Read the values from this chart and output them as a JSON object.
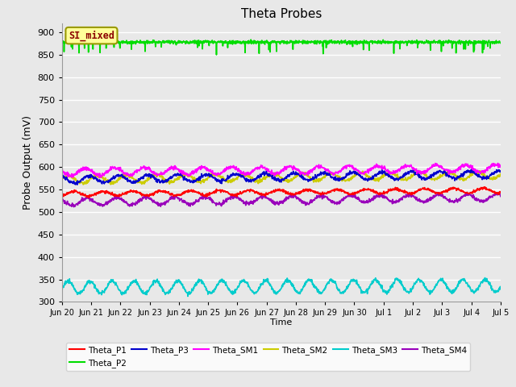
{
  "title": "Theta Probes",
  "ylabel": "Probe Output (mV)",
  "xlabel": "Time",
  "ylim": [
    300,
    920
  ],
  "yticks": [
    300,
    350,
    400,
    450,
    500,
    550,
    600,
    650,
    700,
    750,
    800,
    850,
    900
  ],
  "annotation_text": "SI_mixed",
  "annotation_color": "#8B0000",
  "annotation_bg": "#FFFF99",
  "annotation_border": "#999900",
  "plot_bg": "#E8E8E8",
  "grid_color": "#FFFFFF",
  "series": {
    "Theta_P1": {
      "color": "#FF0000",
      "base": 540,
      "amp": 5,
      "period": 1.0,
      "trend": 8,
      "noise": 1.5
    },
    "Theta_P2": {
      "color": "#00DD00",
      "base": 878,
      "amp": 0,
      "period": 1.0,
      "trend": 0,
      "noise": 4
    },
    "Theta_P3": {
      "color": "#0000CC",
      "base": 572,
      "amp": 8,
      "period": 1.0,
      "trend": 12,
      "noise": 2
    },
    "Theta_SM1": {
      "color": "#FF00FF",
      "base": 589,
      "amp": 8,
      "period": 1.0,
      "trend": 8,
      "noise": 2
    },
    "Theta_SM2": {
      "color": "#CCCC00",
      "base": 572,
      "amp": 8,
      "period": 1.0,
      "trend": 10,
      "noise": 2
    },
    "Theta_SM3": {
      "color": "#00CCCC",
      "base": 332,
      "amp": 14,
      "period": 0.75,
      "trend": 4,
      "noise": 2
    },
    "Theta_SM4": {
      "color": "#9900BB",
      "base": 522,
      "amp": 8,
      "period": 1.0,
      "trend": 10,
      "noise": 2
    }
  },
  "x_tick_labels": [
    "Jun 20",
    "Jun 21",
    "Jun 22",
    "Jun 23",
    "Jun 24",
    "Jun 25",
    "Jun 26",
    "Jun 27",
    "Jun 28",
    "Jun 29",
    "Jun 30",
    "Jul 1",
    "Jul 2",
    "Jul 3",
    "Jul 4",
    "Jul 5"
  ],
  "n_points": 1440,
  "legend_order": [
    "Theta_P1",
    "Theta_P2",
    "Theta_P3",
    "Theta_SM1",
    "Theta_SM2",
    "Theta_SM3",
    "Theta_SM4"
  ],
  "figsize": [
    6.4,
    4.8
  ],
  "dpi": 100
}
